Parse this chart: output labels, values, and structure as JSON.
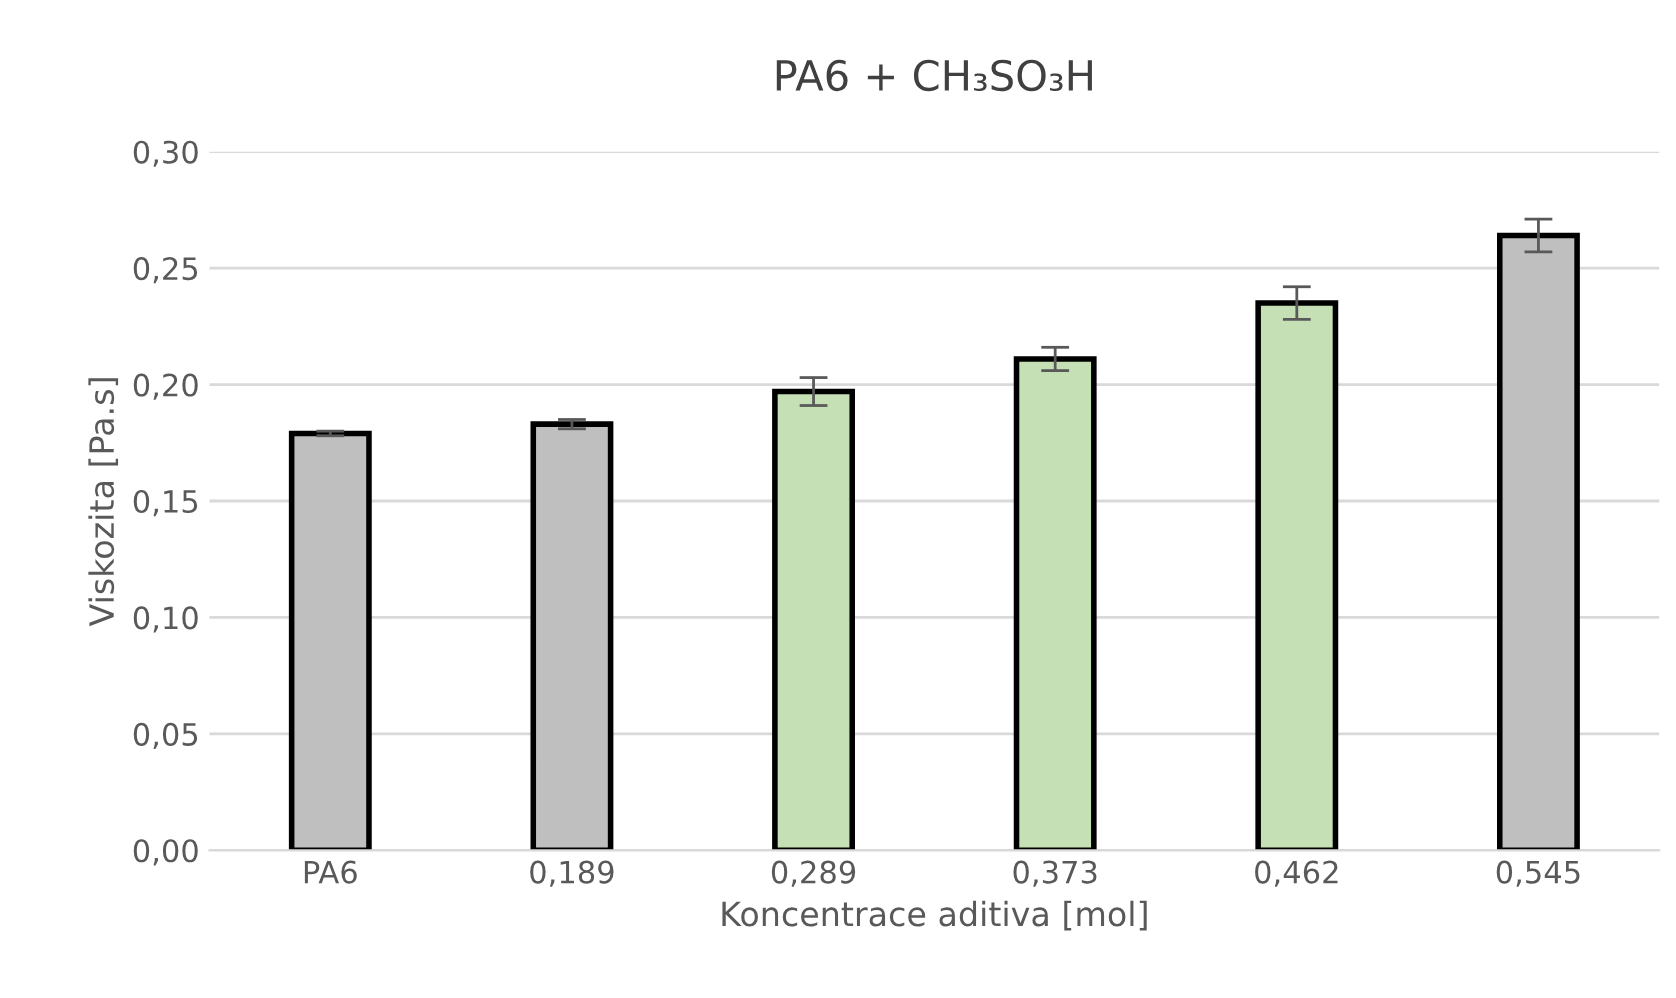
{
  "chart_data": {
    "type": "bar",
    "title": "PA6 + CH₃SO₃H",
    "xlabel": "Koncentrace aditiva [mol]",
    "ylabel": "Viskozita [Pa.s]",
    "categories": [
      "PA6",
      "0,189",
      "0,289",
      "0,373",
      "0,462",
      "0,545"
    ],
    "values": [
      0.179,
      0.183,
      0.197,
      0.211,
      0.235,
      0.264
    ],
    "errors": [
      0.001,
      0.002,
      0.006,
      0.005,
      0.007,
      0.007
    ],
    "colors": [
      "#bfbfbf",
      "#bfbfbf",
      "#c5e0b4",
      "#c5e0b4",
      "#c5e0b4",
      "#bfbfbf"
    ],
    "ylim": [
      0,
      0.3
    ],
    "yticks": [
      {
        "value": 0,
        "label": "0,00"
      },
      {
        "value": 0.05,
        "label": "0,05"
      },
      {
        "value": 0.1,
        "label": "0,10"
      },
      {
        "value": 0.15,
        "label": "0,15"
      },
      {
        "value": 0.2,
        "label": "0,20"
      },
      {
        "value": 0.25,
        "label": "0,25"
      },
      {
        "value": 0.3,
        "label": "0,30"
      }
    ],
    "grid": "y",
    "legend": false
  }
}
